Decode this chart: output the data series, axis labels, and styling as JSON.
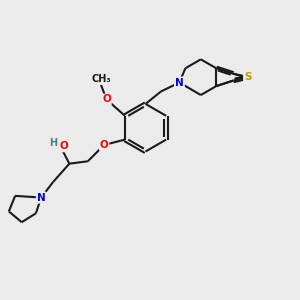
{
  "background_color": "#ebebeb",
  "bond_color": "#1a1a1a",
  "atom_colors": {
    "O": "#ff0000",
    "N": "#0000ee",
    "S": "#b8a000",
    "H_gray": "#4a8080"
  },
  "figsize": [
    3.0,
    3.0
  ],
  "dpi": 100,
  "lw": 1.5,
  "doff": 0.055,
  "fontsize": 7.5
}
